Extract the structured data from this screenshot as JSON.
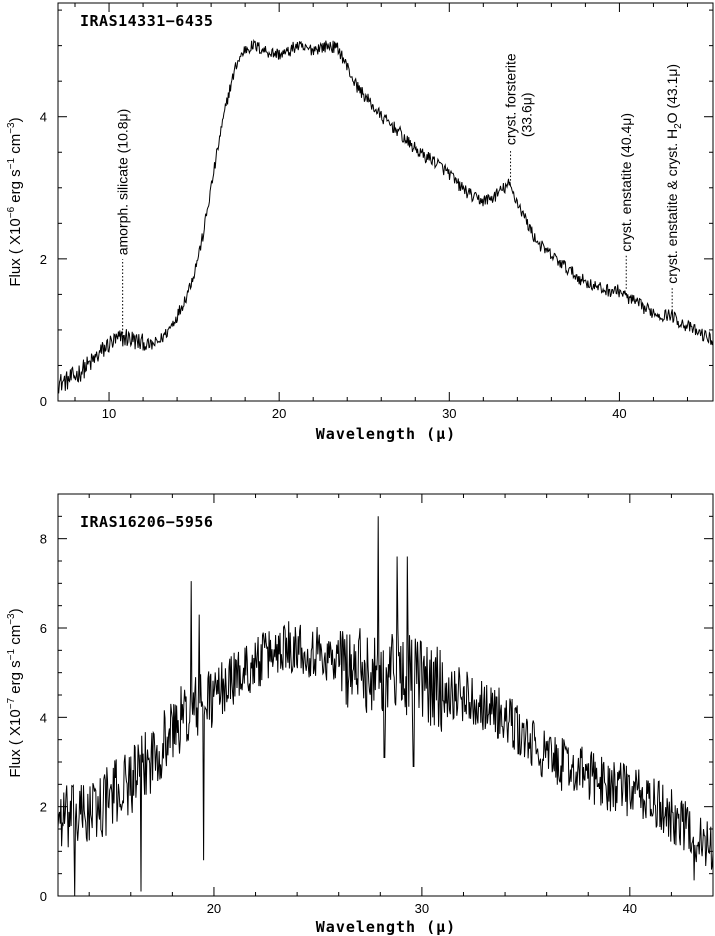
{
  "chart_data": [
    {
      "type": "line",
      "title": "IRAS14331−6435",
      "xlabel": "Wavelength (μ)",
      "ylabel_prefix": "Flux ( X10",
      "ylabel_exp1": "−6",
      "ylabel_mid": " erg s",
      "ylabel_exp2": "−1",
      "ylabel_mid2": " cm",
      "ylabel_exp3": "−3",
      "ylabel_suffix": ")",
      "xlim": [
        7,
        45.5
      ],
      "ylim": [
        0,
        5.6
      ],
      "xticks": [
        10,
        20,
        30,
        40
      ],
      "xtick_labels": [
        "10",
        "20",
        "30",
        "40"
      ],
      "yticks": [
        0,
        2,
        4
      ],
      "ytick_labels": [
        "0",
        "2",
        "4"
      ],
      "noise": 0.09,
      "series": [
        {
          "x": [
            7,
            7.5,
            8,
            8.5,
            9,
            9.5,
            10,
            10.5,
            11,
            11.5,
            12,
            12.5,
            13,
            13.5,
            14,
            14.5,
            15,
            15.5,
            16,
            16.5,
            17,
            17.5,
            18,
            18.5,
            19,
            19.5,
            20,
            20.5,
            21,
            21.5,
            22,
            22.5,
            23,
            23.5,
            24,
            24.5,
            25,
            25.5,
            26,
            26.5,
            27,
            27.5,
            28,
            28.5,
            29,
            29.5,
            30,
            30.5,
            31,
            31.5,
            32,
            32.5,
            33,
            33.5,
            34,
            34.5,
            35,
            35.5,
            36,
            36.5,
            37,
            37.5,
            38,
            38.5,
            39,
            39.5,
            40,
            40.5,
            41,
            41.5,
            42,
            42.5,
            43,
            43.5,
            44,
            44.5,
            45,
            45.5
          ],
          "y": [
            0.25,
            0.28,
            0.35,
            0.45,
            0.55,
            0.68,
            0.8,
            0.86,
            0.9,
            0.85,
            0.8,
            0.78,
            0.85,
            1.0,
            1.2,
            1.45,
            1.8,
            2.3,
            3.0,
            3.7,
            4.3,
            4.75,
            4.95,
            5.0,
            4.95,
            4.9,
            4.88,
            4.9,
            5.0,
            4.95,
            4.95,
            4.98,
            5.0,
            4.95,
            4.7,
            4.45,
            4.3,
            4.15,
            4.0,
            3.9,
            3.8,
            3.65,
            3.55,
            3.45,
            3.4,
            3.3,
            3.2,
            3.05,
            2.95,
            2.85,
            2.82,
            2.85,
            2.95,
            3.05,
            2.8,
            2.55,
            2.3,
            2.15,
            2.05,
            1.95,
            1.85,
            1.75,
            1.68,
            1.62,
            1.57,
            1.55,
            1.55,
            1.45,
            1.38,
            1.3,
            1.25,
            1.2,
            1.22,
            1.12,
            1.05,
            0.98,
            0.92,
            0.85
          ]
        }
      ],
      "annotations": [
        {
          "text": "amorph. silicate (10.8μ)",
          "x": 10.8,
          "y": 0.9,
          "top": 2.05
        },
        {
          "text": "cryst. forsterite",
          "text2": "(33.6μ)",
          "x": 33.6,
          "y": 3.1,
          "top": 3.6
        },
        {
          "text": "cryst. enstatite (40.4μ)",
          "x": 40.4,
          "y": 1.58,
          "top": 2.1
        },
        {
          "text": "cryst. enstatite & cryst. H",
          "sub": "2",
          "text_after": "O (43.1μ)",
          "x": 43.1,
          "y": 1.22,
          "top": 1.65
        }
      ]
    },
    {
      "type": "line",
      "title": "IRAS16206−5956",
      "xlabel": "Wavelength (μ)",
      "ylabel_prefix": "Flux ( X10",
      "ylabel_exp1": "−7",
      "ylabel_mid": " erg s",
      "ylabel_exp2": "−1",
      "ylabel_mid2": " cm",
      "ylabel_exp3": "−3",
      "ylabel_suffix": ")",
      "xlim": [
        12.5,
        44
      ],
      "ylim": [
        0,
        9
      ],
      "xticks": [
        20,
        30,
        40
      ],
      "xtick_labels": [
        "20",
        "30",
        "40"
      ],
      "yticks": [
        0,
        2,
        4,
        6,
        8
      ],
      "ytick_labels": [
        "0",
        "2",
        "4",
        "6",
        "8"
      ],
      "noise": 0.6,
      "series": [
        {
          "x": [
            12.5,
            13,
            13.5,
            14,
            14.5,
            15,
            15.5,
            16,
            16.5,
            17,
            17.5,
            18,
            18.5,
            19,
            19.5,
            20,
            20.5,
            21,
            21.5,
            22,
            22.5,
            23,
            23.5,
            24,
            24.5,
            25,
            25.5,
            26,
            26.5,
            27,
            27.5,
            28,
            28.5,
            29,
            29.5,
            30,
            30.5,
            31,
            31.5,
            32,
            32.5,
            33,
            33.5,
            34,
            34.5,
            35,
            35.5,
            36,
            36.5,
            37,
            37.5,
            38,
            38.5,
            39,
            39.5,
            40,
            40.5,
            41,
            41.5,
            42,
            42.5,
            43,
            43.5,
            44
          ],
          "y": [
            1.8,
            1.7,
            1.75,
            1.85,
            2.0,
            2.2,
            2.4,
            2.6,
            2.8,
            3.1,
            3.4,
            3.7,
            4.0,
            4.2,
            4.3,
            4.5,
            4.7,
            4.9,
            5.05,
            5.2,
            5.35,
            5.5,
            5.6,
            5.6,
            5.5,
            5.45,
            5.35,
            5.25,
            5.15,
            5.05,
            5.0,
            5.05,
            5.1,
            5.05,
            4.95,
            4.8,
            4.7,
            4.6,
            4.55,
            4.5,
            4.4,
            4.3,
            4.15,
            3.95,
            3.75,
            3.5,
            3.3,
            3.1,
            3.0,
            2.9,
            2.8,
            2.7,
            2.6,
            2.5,
            2.45,
            2.35,
            2.25,
            2.1,
            1.95,
            1.8,
            1.6,
            1.4,
            1.2,
            1.0
          ]
        }
      ],
      "spikes": [
        {
          "x": 18.9,
          "y": 7.05
        },
        {
          "x": 19.3,
          "y": 6.3
        },
        {
          "x": 19.5,
          "y": 0.8
        },
        {
          "x": 16.5,
          "y": 0.1
        },
        {
          "x": 13.3,
          "y": 0.0
        },
        {
          "x": 27.9,
          "y": 8.5
        },
        {
          "x": 28.8,
          "y": 7.6
        },
        {
          "x": 29.3,
          "y": 7.6
        },
        {
          "x": 29.6,
          "y": 2.9
        },
        {
          "x": 28.2,
          "y": 3.1
        },
        {
          "x": 23.6,
          "y": 6.15
        },
        {
          "x": 43.1,
          "y": 0.35
        }
      ]
    }
  ]
}
